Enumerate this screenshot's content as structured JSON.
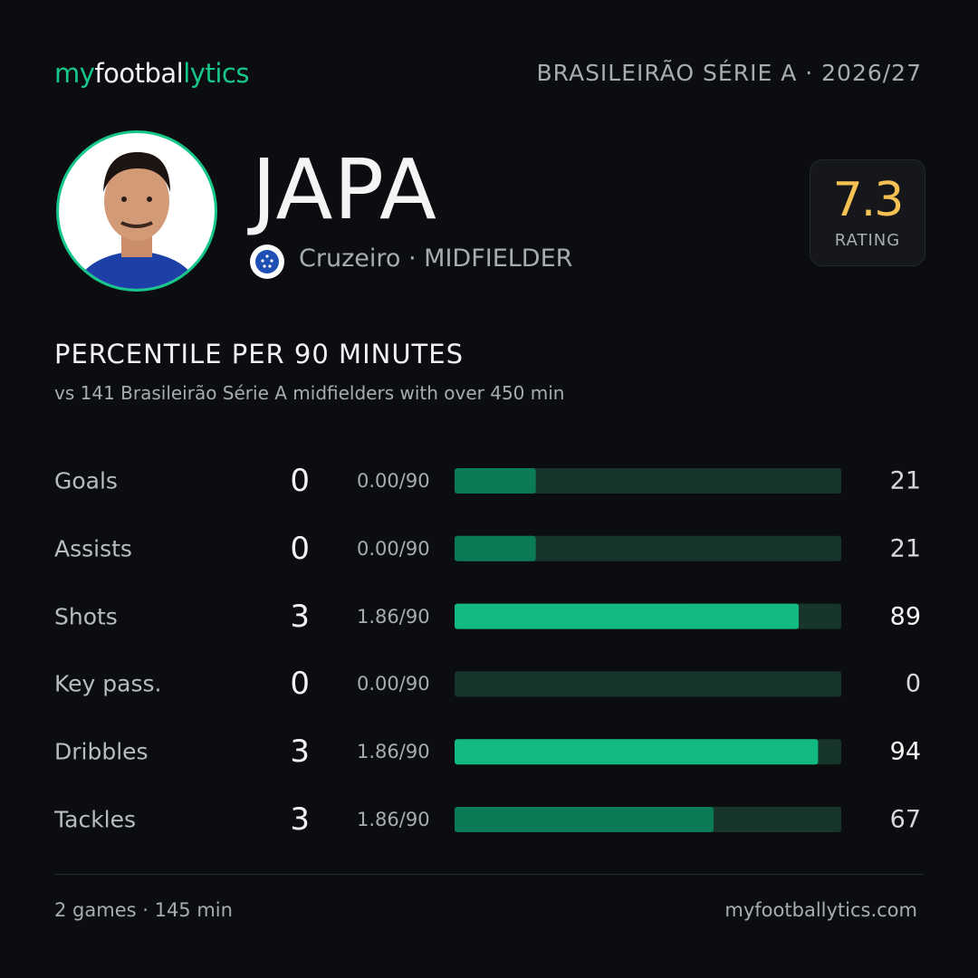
{
  "header": {
    "brand": [
      "my",
      "footbal",
      "lytics"
    ],
    "competition": "BRASILEIRÃO  SÉRIE A · 2026/27"
  },
  "player": {
    "name": "JAPA",
    "club": "Cruzeiro",
    "position": "· MIDFIELDER",
    "rating": 7.3,
    "rating_label": "RATING"
  },
  "section": {
    "title": "PERCENTILE  PER 90 MINUTES",
    "subtitle": "vs 141 Brasileirão  Série A midfielders  with over 450 min"
  },
  "chart_data": {
    "type": "bar",
    "orientation": "horizontal",
    "categories": [
      "Goals",
      "Assists",
      "Shots",
      "Key pass.",
      "Dribbles",
      "Tackles"
    ],
    "totals": [
      0,
      0,
      3,
      0,
      3,
      3
    ],
    "per90": [
      "0.00/90",
      "0.00/90",
      "1.86/90",
      "0.00/90",
      "1.86/90",
      "1.86/90"
    ],
    "values": [
      21,
      21,
      89,
      0,
      94,
      67
    ],
    "xlim": [
      0,
      100
    ],
    "colors": [
      "#0b7a56",
      "#0b7a56",
      "#12b981",
      "#0b7a56",
      "#12b981",
      "#0b7a56"
    ],
    "track_color": "#17352b"
  },
  "footer": {
    "summary": "2 games · 145 min",
    "site": "myfootballytics.com"
  }
}
